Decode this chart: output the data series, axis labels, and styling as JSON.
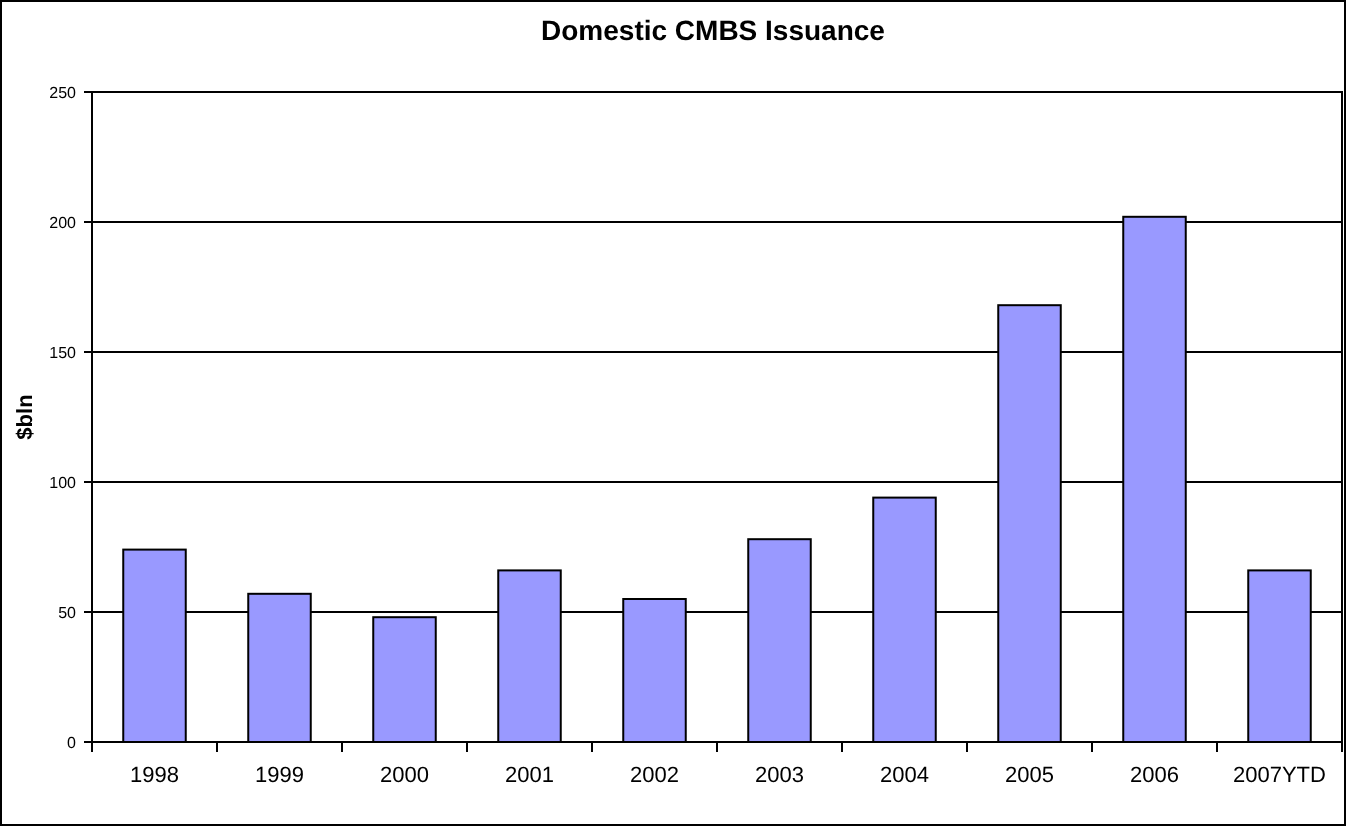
{
  "chart_data": {
    "type": "bar",
    "title": "Domestic CMBS Issuance",
    "ylabel": "$bln",
    "categories": [
      "1998",
      "1999",
      "2000",
      "2001",
      "2002",
      "2003",
      "2004",
      "2005",
      "2006",
      "2007YTD"
    ],
    "values": [
      74,
      57,
      48,
      66,
      55,
      78,
      94,
      168,
      202,
      66
    ],
    "color": "#9999ff",
    "ylim": [
      0,
      250
    ],
    "yticks": [
      0,
      50,
      100,
      150,
      200,
      250
    ],
    "grid": "y"
  }
}
